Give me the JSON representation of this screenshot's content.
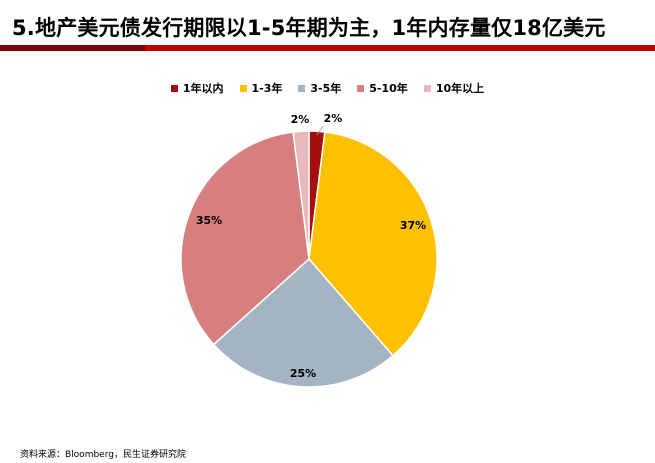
{
  "title": "5.地产美元债发行期限以1-5年期为主，1年内存量仅18亿美元",
  "source": "资料来源：Bloomberg，民生证券研究院",
  "colors": {
    "accent": "#c00000",
    "accent_dark": "#7a0000"
  },
  "chart_data": {
    "type": "pie",
    "title": "",
    "legend_position": "top",
    "slices": [
      {
        "label": "1年以内",
        "value": 2,
        "display": "2%",
        "color": "#a50f0f"
      },
      {
        "label": "1-3年",
        "value": 37,
        "display": "37%",
        "color": "#ffc000"
      },
      {
        "label": "3-5年",
        "value": 25,
        "display": "25%",
        "color": "#a5b4c2"
      },
      {
        "label": "5-10年",
        "value": 35,
        "display": "35%",
        "color": "#d77f7e"
      },
      {
        "label": "10年以上",
        "value": 2,
        "display": "2%",
        "color": "#e7b9b8"
      }
    ]
  }
}
